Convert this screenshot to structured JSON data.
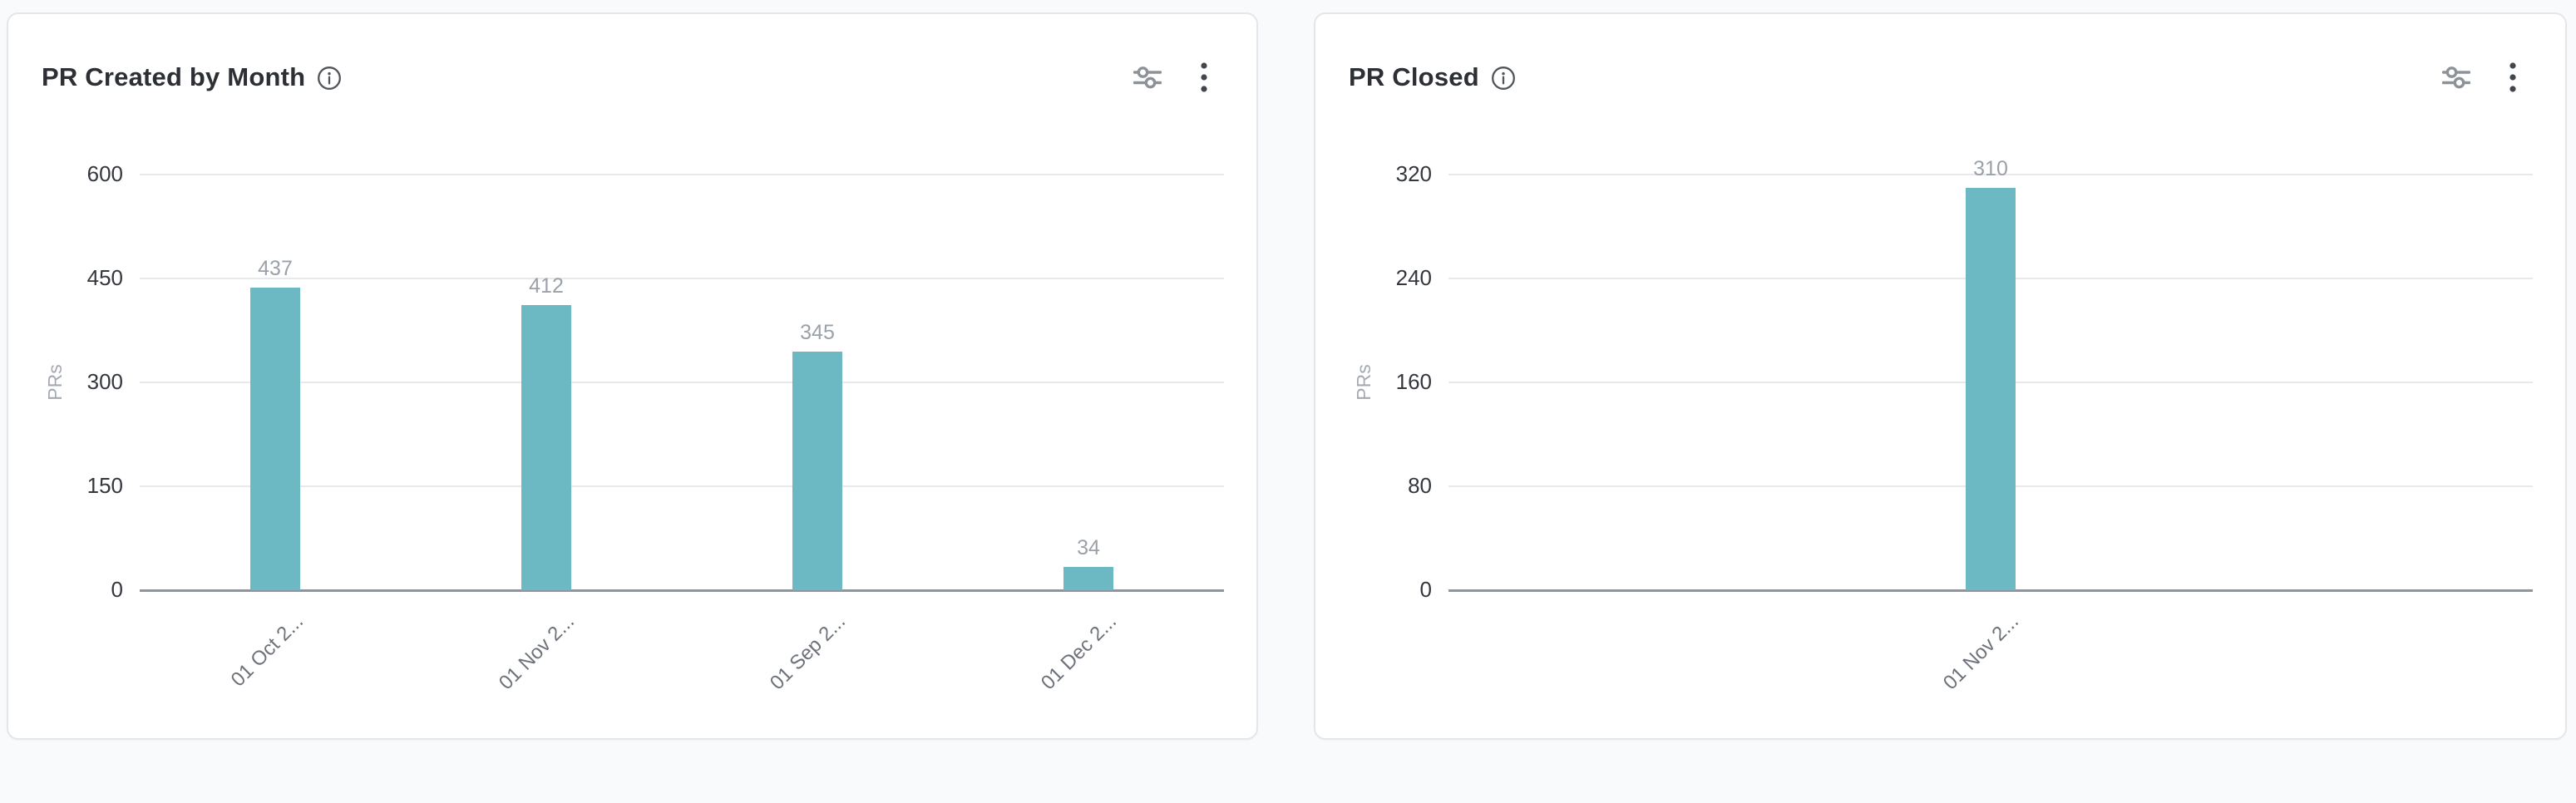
{
  "page": {
    "background_color": "#f9fafc",
    "card_background_color": "#ffffff",
    "card_border_color": "#e4e6ea"
  },
  "cards": [
    {
      "title": "PR Created by Month",
      "title_icon": "info-icon",
      "action_icons": [
        "filter-sliders-icon",
        "kebab-menu-icon"
      ]
    },
    {
      "title": "PR Closed",
      "title_icon": "info-icon",
      "action_icons": [
        "filter-sliders-icon",
        "kebab-menu-icon"
      ]
    }
  ],
  "chart_data": [
    {
      "type": "bar",
      "title": "PR Created by Month",
      "categories": [
        "01 Oct 2...",
        "01 Nov 2...",
        "01 Sep 2...",
        "01 Dec 2..."
      ],
      "values": [
        437,
        412,
        345,
        34
      ],
      "xlabel": "",
      "ylabel": "PRs",
      "ylim": [
        0,
        600
      ],
      "yticks": [
        0,
        150,
        300,
        450,
        600
      ],
      "grid": true,
      "legend": false,
      "bar_color": "#6db9c3",
      "value_label_color": "#9ba1a8",
      "tick_label_color": "#34383e",
      "category_label_rotation_deg": -45
    },
    {
      "type": "bar",
      "title": "PR Closed",
      "categories": [
        "01 Nov 2..."
      ],
      "values": [
        310
      ],
      "xlabel": "",
      "ylabel": "PRs",
      "ylim": [
        0,
        320
      ],
      "yticks": [
        0,
        80,
        160,
        240,
        320
      ],
      "grid": true,
      "legend": false,
      "bar_color": "#6db9c3",
      "value_label_color": "#9ba1a8",
      "tick_label_color": "#34383e",
      "category_label_rotation_deg": -45
    }
  ]
}
